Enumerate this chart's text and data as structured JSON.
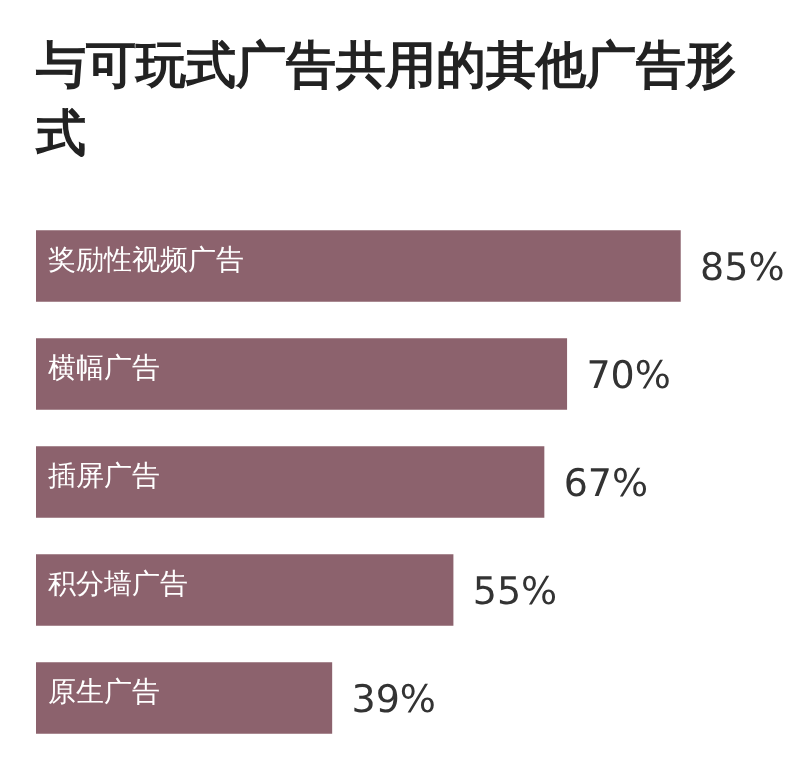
{
  "chart_data": {
    "type": "bar",
    "orientation": "horizontal",
    "title": "与可玩式广告共用的其他广告形式",
    "categories": [
      "奖励性视频广告",
      "横幅广告",
      "插屏广告",
      "积分墙广告",
      "原生广告"
    ],
    "values": [
      85,
      70,
      67,
      55,
      39
    ],
    "value_labels": [
      "85%",
      "70%",
      "67%",
      "55%",
      "39%"
    ],
    "color": "#8c626d",
    "legend": false
  }
}
